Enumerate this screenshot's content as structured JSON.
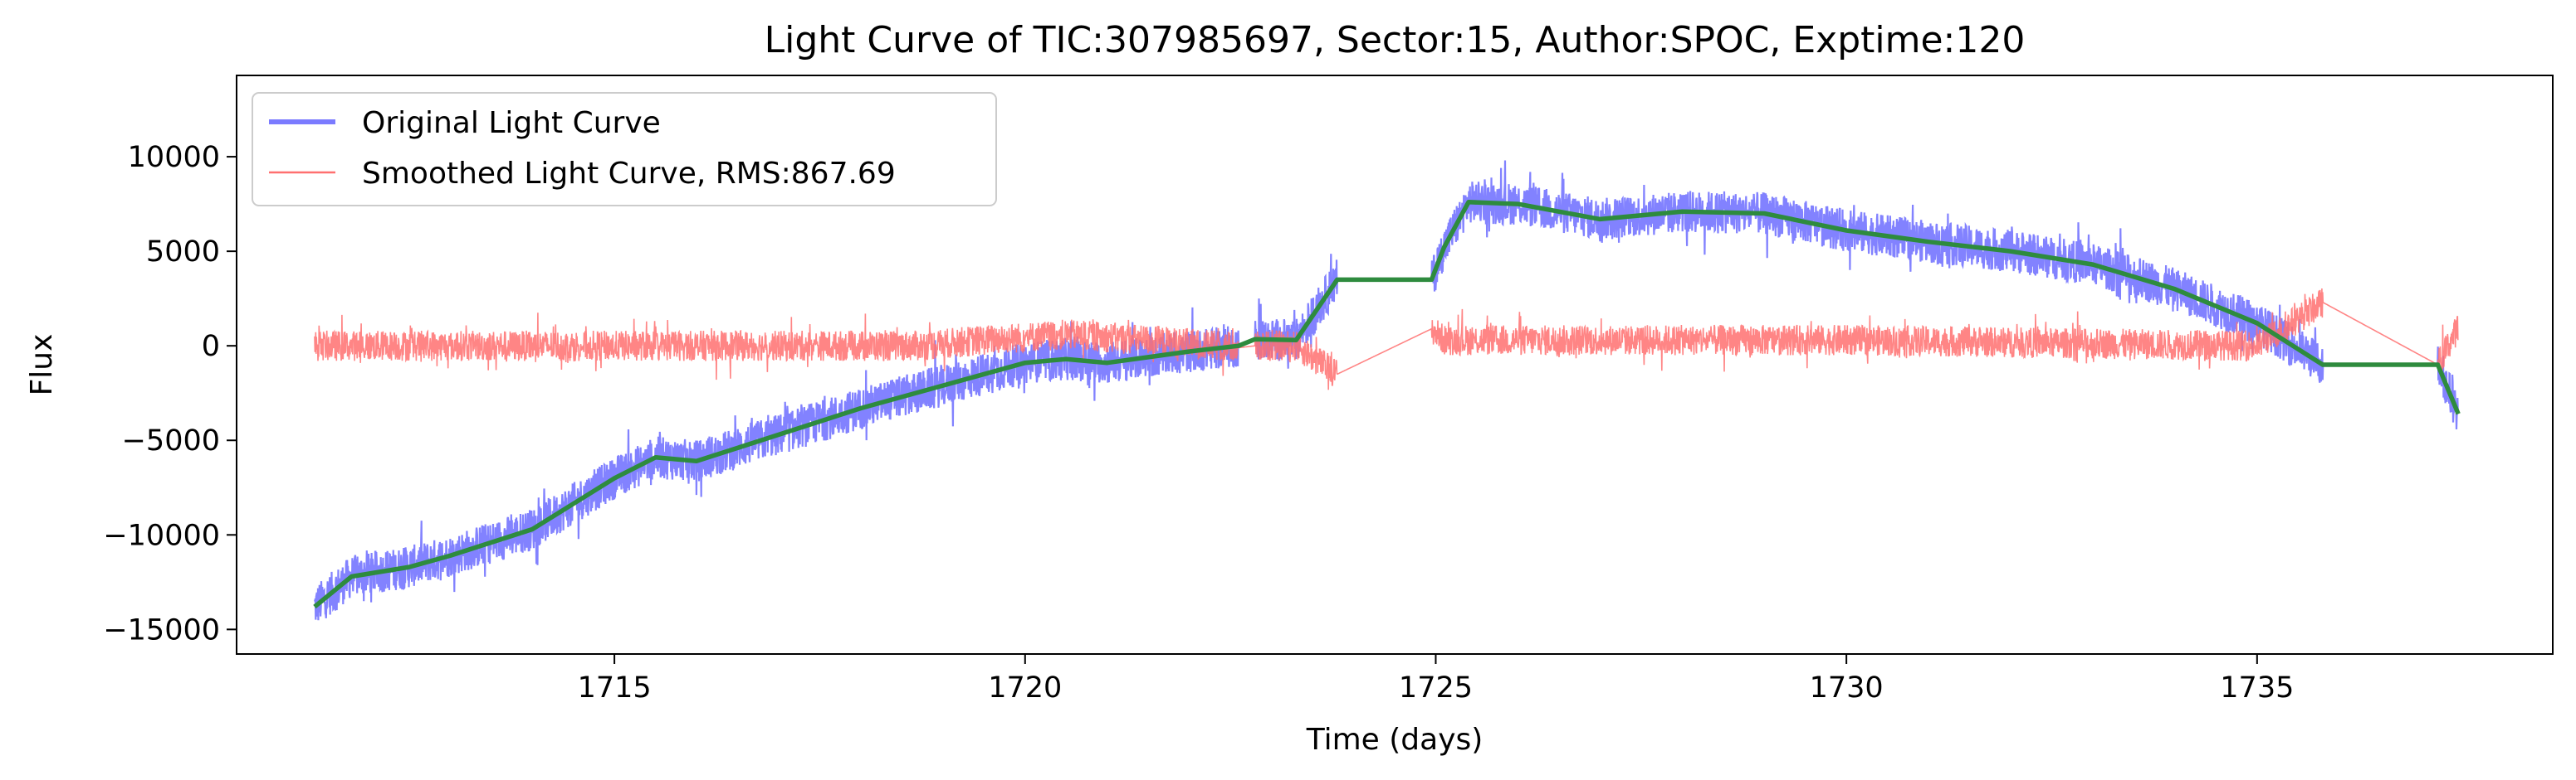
{
  "chart_data": {
    "type": "line",
    "title": "Light Curve of TIC:307985697, Sector:15, Author:SPOC, Exptime:120",
    "xlabel": "Time (days)",
    "ylabel": "Flux",
    "xlim": [
      1710.4,
      1738.6
    ],
    "ylim": [
      -16300,
      14300
    ],
    "xticks": [
      1715,
      1720,
      1725,
      1730,
      1735
    ],
    "yticks": [
      -15000,
      -10000,
      -5000,
      0,
      5000,
      10000
    ],
    "xtick_labels": [
      "1715",
      "1720",
      "1725",
      "1730",
      "1735"
    ],
    "ytick_labels": [
      "−15000",
      "−10000",
      "−5000",
      "0",
      "5000",
      "10000"
    ],
    "grid": false,
    "legend_position": "upper-left",
    "series": [
      {
        "name": "Original Light Curve",
        "color": "#7b7bff",
        "style": "noisy-band",
        "noise_amplitude": 1600,
        "x": [
          1711.35,
          1711.8,
          1712.5,
          1713.0,
          1714.0,
          1715.0,
          1715.5,
          1716.0,
          1717.0,
          1718.0,
          1719.0,
          1720.0,
          1720.5,
          1721.0,
          1722.0,
          1722.6,
          1722.8,
          1723.3,
          1723.8,
          1724.95,
          1725.1,
          1725.4,
          1726.0,
          1727.0,
          1728.0,
          1729.0,
          1730.0,
          1731.0,
          1732.0,
          1733.0,
          1734.0,
          1735.0,
          1735.8,
          1737.2,
          1737.45
        ],
        "y": [
          -13800,
          -12200,
          -11700,
          -11100,
          -9700,
          -7000,
          -5900,
          -6100,
          -4700,
          -3300,
          -2100,
          -900,
          -700,
          -900,
          -300,
          0,
          350,
          300,
          3500,
          3500,
          5200,
          7600,
          7500,
          6700,
          7100,
          7000,
          6100,
          5500,
          5000,
          4300,
          3000,
          1200,
          -1000,
          -1000,
          -3600
        ]
      },
      {
        "name": "Smoothed Light Curve, RMS:867.69",
        "color": "#ff7070",
        "style": "noisy-band",
        "noise_amplitude": 1150,
        "x": [
          1711.35,
          1715.0,
          1718.7,
          1719.5,
          1720.5,
          1721.5,
          1722.6,
          1722.8,
          1723.3,
          1723.8,
          1724.95,
          1725.1,
          1730.0,
          1735.0,
          1735.8,
          1737.2,
          1737.45
        ],
        "y": [
          0,
          0,
          0,
          300,
          600,
          300,
          -100,
          0,
          0,
          -1500,
          900,
          300,
          300,
          0,
          2300,
          -1000,
          1000
        ]
      },
      {
        "color": "#2e8b3e",
        "style": "line",
        "x": [
          1711.35,
          1711.8,
          1712.5,
          1713.0,
          1714.0,
          1715.0,
          1715.5,
          1716.0,
          1717.0,
          1718.0,
          1719.0,
          1720.0,
          1720.5,
          1721.0,
          1722.0,
          1722.6,
          1722.8,
          1723.3,
          1723.8,
          1724.95,
          1725.1,
          1725.4,
          1726.0,
          1727.0,
          1728.0,
          1729.0,
          1730.0,
          1731.0,
          1732.0,
          1733.0,
          1734.0,
          1735.0,
          1735.8,
          1737.2,
          1737.45
        ],
        "y": [
          -13800,
          -12200,
          -11700,
          -11100,
          -9700,
          -7000,
          -5900,
          -6100,
          -4700,
          -3300,
          -2100,
          -900,
          -700,
          -900,
          -300,
          0,
          350,
          300,
          3500,
          3500,
          5200,
          7600,
          7500,
          6700,
          7100,
          7000,
          6100,
          5500,
          5000,
          4300,
          3000,
          1200,
          -1000,
          -1000,
          -3600
        ]
      }
    ]
  }
}
